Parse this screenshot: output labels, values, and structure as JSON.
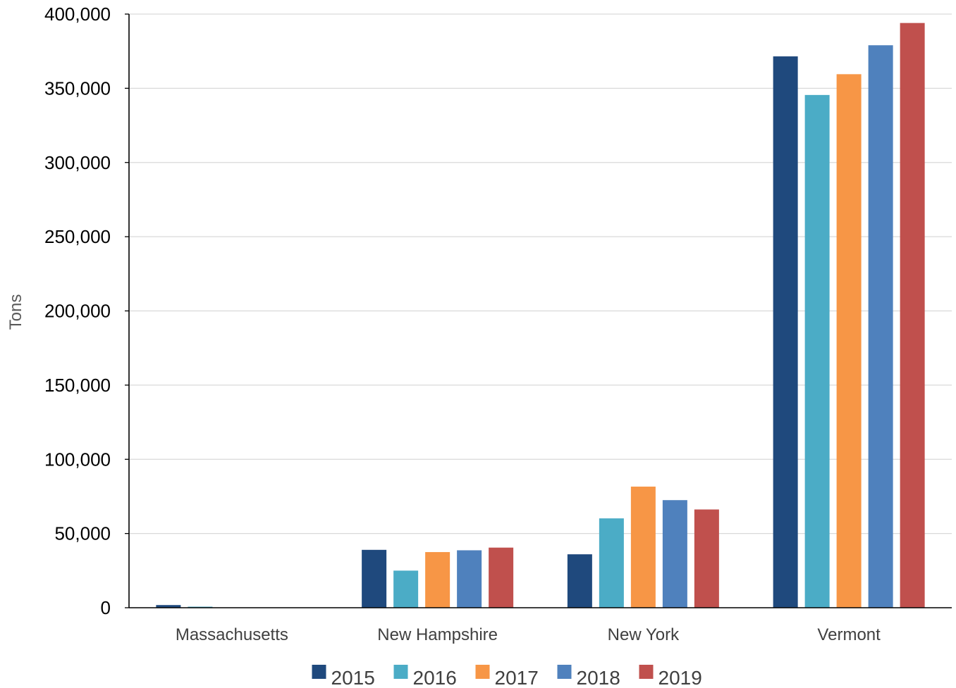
{
  "chart_data": {
    "type": "bar",
    "title": "",
    "xlabel": "",
    "ylabel": "Tons",
    "ylim": [
      0,
      400000
    ],
    "yticks": [
      0,
      50000,
      100000,
      150000,
      200000,
      250000,
      300000,
      350000,
      400000
    ],
    "ytick_labels": [
      "0",
      "50,000",
      "100,000",
      "150,000",
      "200,000",
      "250,000",
      "300,000",
      "350,000",
      "400,000"
    ],
    "grid": true,
    "legend_position": "bottom",
    "categories": [
      "Massachusetts",
      "New Hampshire",
      "New York",
      "Vermont"
    ],
    "series": [
      {
        "name": "2015",
        "color": "#1f497d",
        "values": [
          1800,
          39000,
          36000,
          371500
        ]
      },
      {
        "name": "2016",
        "color": "#4bacc6",
        "values": [
          700,
          25000,
          60200,
          345500
        ]
      },
      {
        "name": "2017",
        "color": "#f79646",
        "values": [
          200,
          37500,
          81600,
          359500
        ]
      },
      {
        "name": "2018",
        "color": "#4f81bd",
        "values": [
          100,
          38700,
          72500,
          379000
        ]
      },
      {
        "name": "2019",
        "color": "#c0504d",
        "values": [
          100,
          40500,
          66200,
          394000
        ]
      }
    ]
  }
}
